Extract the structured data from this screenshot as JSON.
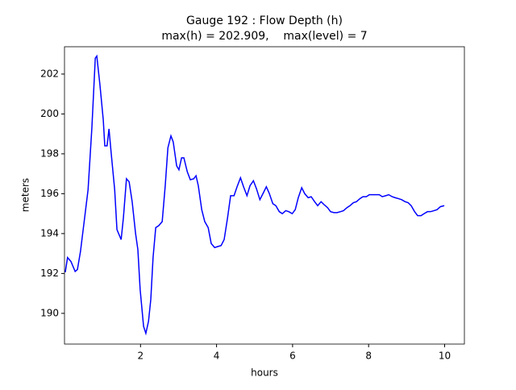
{
  "chart_data": {
    "type": "line",
    "title": "Gauge 192 : Flow Depth (h)",
    "subtitle": "max(h) = 202.909,    max(level) = 7",
    "x_label": "hours",
    "y_label": "meters",
    "xlim": [
      0,
      10.52
    ],
    "ylim": [
      188.46,
      203.37
    ],
    "xticks": [
      2,
      4,
      6,
      8,
      10
    ],
    "yticks": [
      190,
      192,
      194,
      196,
      198,
      200,
      202
    ],
    "series": [
      {
        "color": "#0000ff",
        "x": [
          0.02,
          0.08,
          0.17,
          0.28,
          0.34,
          0.42,
          0.53,
          0.62,
          0.72,
          0.81,
          0.85,
          0.93,
          1.02,
          1.06,
          1.12,
          1.17,
          1.23,
          1.32,
          1.38,
          1.49,
          1.55,
          1.63,
          1.7,
          1.78,
          1.87,
          1.93,
          1.99,
          2.08,
          2.14,
          2.21,
          2.27,
          2.33,
          2.4,
          2.48,
          2.57,
          2.65,
          2.72,
          2.8,
          2.86,
          2.95,
          3.01,
          3.08,
          3.14,
          3.23,
          3.31,
          3.4,
          3.46,
          3.52,
          3.61,
          3.69,
          3.78,
          3.86,
          3.95,
          4.03,
          4.12,
          4.2,
          4.29,
          4.37,
          4.46,
          4.54,
          4.63,
          4.71,
          4.8,
          4.88,
          4.97,
          5.05,
          5.14,
          5.22,
          5.31,
          5.39,
          5.48,
          5.56,
          5.65,
          5.73,
          5.82,
          5.9,
          5.99,
          6.07,
          6.15,
          6.24,
          6.32,
          6.41,
          6.49,
          6.58,
          6.66,
          6.75,
          6.83,
          6.92,
          7.0,
          7.09,
          7.17,
          7.26,
          7.34,
          7.43,
          7.51,
          7.6,
          7.68,
          7.77,
          7.85,
          7.94,
          8.02,
          8.11,
          8.19,
          8.28,
          8.36,
          8.45,
          8.53,
          8.62,
          8.7,
          8.79,
          8.87,
          8.96,
          9.04,
          9.12,
          9.21,
          9.29,
          9.38,
          9.46,
          9.55,
          9.63,
          9.72,
          9.8,
          9.89,
          9.99
        ],
        "values": [
          192.06,
          192.8,
          192.6,
          192.1,
          192.2,
          193.1,
          194.8,
          196.2,
          199.3,
          202.8,
          202.9,
          201.5,
          199.7,
          198.4,
          198.4,
          199.25,
          198,
          196.2,
          194.2,
          193.7,
          194.8,
          196.75,
          196.6,
          195.6,
          194,
          193.2,
          191.2,
          189.35,
          189.0,
          189.6,
          190.7,
          192.8,
          194.3,
          194.4,
          194.6,
          196.4,
          198.3,
          198.9,
          198.6,
          197.4,
          197.2,
          197.8,
          197.8,
          197.1,
          196.7,
          196.75,
          196.9,
          196.4,
          195.2,
          194.6,
          194.3,
          193.5,
          193.3,
          193.35,
          193.4,
          193.7,
          194.8,
          195.9,
          195.9,
          196.35,
          196.8,
          196.35,
          195.9,
          196.4,
          196.65,
          196.25,
          195.7,
          196,
          196.35,
          196,
          195.5,
          195.4,
          195.1,
          195,
          195.15,
          195.1,
          195,
          195.2,
          195.8,
          196.3,
          196,
          195.8,
          195.85,
          195.6,
          195.4,
          195.6,
          195.45,
          195.3,
          195.1,
          195.05,
          195.05,
          195.1,
          195.15,
          195.3,
          195.4,
          195.55,
          195.6,
          195.75,
          195.85,
          195.85,
          195.95,
          195.95,
          195.95,
          195.95,
          195.85,
          195.9,
          195.95,
          195.85,
          195.8,
          195.75,
          195.7,
          195.6,
          195.55,
          195.4,
          195.1,
          194.9,
          194.9,
          195,
          195.1,
          195.1,
          195.15,
          195.2,
          195.35,
          195.4
        ]
      }
    ]
  }
}
